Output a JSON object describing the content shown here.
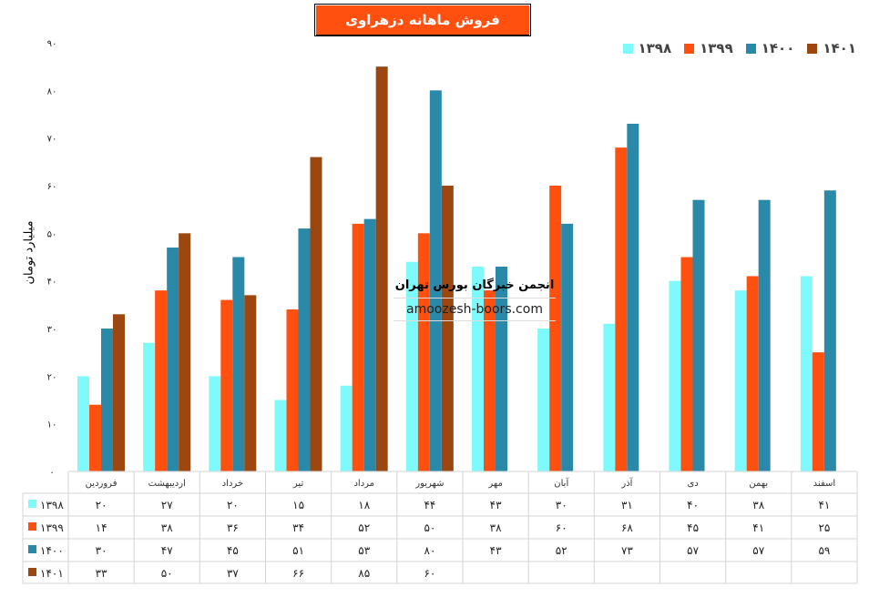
{
  "chart_data": {
    "type": "bar",
    "title": "فروش ماهانه دزهراوی",
    "ylabel": "میلیارد تومان",
    "xlabel": "",
    "ylim": [
      0,
      90
    ],
    "yticks": [
      0,
      10,
      20,
      30,
      40,
      50,
      60,
      70,
      80,
      90
    ],
    "ytick_labels": [
      "۰",
      "۱۰",
      "۲۰",
      "۳۰",
      "۴۰",
      "۵۰",
      "۶۰",
      "۷۰",
      "۸۰",
      "۹۰"
    ],
    "categories": [
      "فروردین",
      "اردیبهشت",
      "خرداد",
      "تیر",
      "مرداد",
      "شهریور",
      "مهر",
      "آبان",
      "آذر",
      "دی",
      "بهمن",
      "اسفند"
    ],
    "legend_position": "top-right",
    "series": [
      {
        "name": "۱۳۹۸",
        "color": "#7ffafc",
        "values": [
          20,
          27,
          20,
          15,
          18,
          44,
          43,
          30,
          31,
          40,
          38,
          41
        ],
        "labels": [
          "۲۰",
          "۲۷",
          "۲۰",
          "۱۵",
          "۱۸",
          "۴۴",
          "۴۳",
          "۳۰",
          "۳۱",
          "۴۰",
          "۳۸",
          "۴۱"
        ]
      },
      {
        "name": "۱۳۹۹",
        "color": "#ff5010",
        "values": [
          14,
          38,
          36,
          34,
          52,
          50,
          38,
          60,
          68,
          45,
          41,
          25
        ],
        "labels": [
          "۱۴",
          "۳۸",
          "۳۶",
          "۳۴",
          "۵۲",
          "۵۰",
          "۳۸",
          "۶۰",
          "۶۸",
          "۴۵",
          "۴۱",
          "۲۵"
        ]
      },
      {
        "name": "۱۴۰۰",
        "color": "#2a88a8",
        "values": [
          30,
          47,
          45,
          51,
          53,
          80,
          43,
          52,
          73,
          57,
          57,
          59
        ],
        "labels": [
          "۳۰",
          "۴۷",
          "۴۵",
          "۵۱",
          "۵۳",
          "۸۰",
          "۴۳",
          "۵۲",
          "۷۳",
          "۵۷",
          "۵۷",
          "۵۹"
        ]
      },
      {
        "name": "۱۴۰۱",
        "color": "#9c4710",
        "values": [
          33,
          50,
          37,
          66,
          85,
          60,
          null,
          null,
          null,
          null,
          null,
          null
        ],
        "labels": [
          "۳۳",
          "۵۰",
          "۳۷",
          "۶۶",
          "۸۵",
          "۶۰",
          "",
          "",
          "",
          "",
          "",
          ""
        ]
      }
    ]
  },
  "watermark": {
    "fa": "انجمن خبرگان بورس تهران",
    "en": "amoozesh-boors.com"
  }
}
